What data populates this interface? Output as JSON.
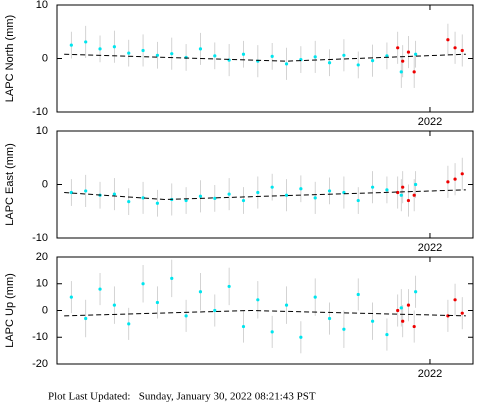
{
  "chart_data": [
    {
      "type": "scatter",
      "ylabel": "LAPC North (mm)",
      "xlim": [
        2016.8,
        2022.6
      ],
      "xticks": [
        2022
      ],
      "ylim": [
        -10,
        10
      ],
      "yticks": [
        -10,
        0,
        10
      ],
      "series": [
        {
          "color": "#00e5ee",
          "x": [
            2017.0,
            2017.2,
            2017.4,
            2017.6,
            2017.8,
            2018.0,
            2018.2,
            2018.4,
            2018.6,
            2018.8,
            2019.0,
            2019.2,
            2019.4,
            2019.6,
            2019.8,
            2020.0,
            2020.2,
            2020.4,
            2020.6,
            2020.8,
            2021.0,
            2021.2,
            2021.4,
            2021.6,
            2021.8
          ],
          "values": [
            2.5,
            3.1,
            1.8,
            2.2,
            1.0,
            1.5,
            0.6,
            0.9,
            0.2,
            1.8,
            0.5,
            -0.3,
            0.8,
            -0.5,
            0.4,
            -1.0,
            -0.2,
            0.3,
            -0.8,
            0.6,
            -1.2,
            -0.4,
            0.5,
            -2.5,
            0.8
          ],
          "errors": [
            2.5,
            3,
            2.5,
            3,
            2.5,
            3,
            2.5,
            3,
            2.5,
            3,
            2.5,
            3,
            2.5,
            3,
            2.5,
            3,
            2.5,
            3,
            2.5,
            3,
            2.5,
            3,
            2.5,
            3,
            2.5
          ]
        },
        {
          "color": "#ee0000",
          "x": [
            2021.55,
            2021.62,
            2021.7,
            2021.78,
            2022.25,
            2022.35,
            2022.45
          ],
          "values": [
            2.0,
            -0.5,
            1.2,
            -2.5,
            3.5,
            2.0,
            1.5
          ],
          "errors": [
            3,
            3,
            3,
            3,
            3,
            3,
            3
          ]
        }
      ],
      "trend": {
        "color": "#000000",
        "x": [
          2016.9,
          2020.0,
          2022.5
        ],
        "values": [
          0.8,
          -0.5,
          0.8
        ]
      }
    },
    {
      "type": "scatter",
      "ylabel": "LAPC East (mm)",
      "xlim": [
        2016.8,
        2022.6
      ],
      "xticks": [
        2022
      ],
      "ylim": [
        -10,
        10
      ],
      "yticks": [
        -10,
        0,
        10
      ],
      "series": [
        {
          "color": "#00e5ee",
          "x": [
            2017.0,
            2017.2,
            2017.4,
            2017.6,
            2017.8,
            2018.0,
            2018.2,
            2018.4,
            2018.6,
            2018.8,
            2019.0,
            2019.2,
            2019.4,
            2019.6,
            2019.8,
            2020.0,
            2020.2,
            2020.4,
            2020.6,
            2020.8,
            2021.0,
            2021.2,
            2021.4,
            2021.6,
            2021.8
          ],
          "values": [
            -1.5,
            -1.2,
            -2.0,
            -1.8,
            -3.2,
            -2.5,
            -3.5,
            -2.8,
            -3.0,
            -2.2,
            -2.6,
            -1.8,
            -3.0,
            -1.5,
            -0.5,
            -2.0,
            -0.8,
            -2.5,
            -1.2,
            -1.5,
            -3.0,
            -0.5,
            -1.0,
            -2.0,
            0.0
          ],
          "errors": [
            2.5,
            3,
            2.5,
            3,
            2.5,
            3,
            2.5,
            3,
            2.5,
            3,
            2.5,
            3,
            2.5,
            3,
            2.5,
            3,
            2.5,
            3,
            2.5,
            3,
            2.5,
            3,
            2.5,
            3,
            2.5
          ]
        },
        {
          "color": "#ee0000",
          "x": [
            2021.55,
            2021.62,
            2021.7,
            2021.78,
            2022.25,
            2022.35,
            2022.45
          ],
          "values": [
            -1.5,
            -0.5,
            -3.0,
            -2.0,
            0.5,
            1.0,
            2.0
          ],
          "errors": [
            3,
            3,
            3,
            3,
            3,
            3,
            3
          ]
        }
      ],
      "trend": {
        "color": "#000000",
        "x": [
          2016.9,
          2018.3,
          2022.5
        ],
        "values": [
          -1.5,
          -2.8,
          -1.0
        ]
      }
    },
    {
      "type": "scatter",
      "ylabel": "LAPC Up (mm)",
      "xlim": [
        2016.8,
        2022.6
      ],
      "xticks": [
        2022
      ],
      "ylim": [
        -20,
        20
      ],
      "yticks": [
        -20,
        -10,
        0,
        10,
        20
      ],
      "series": [
        {
          "color": "#00e5ee",
          "x": [
            2017.0,
            2017.2,
            2017.4,
            2017.6,
            2017.8,
            2018.0,
            2018.2,
            2018.4,
            2018.6,
            2018.8,
            2019.0,
            2019.2,
            2019.4,
            2019.6,
            2019.8,
            2020.0,
            2020.2,
            2020.4,
            2020.6,
            2020.8,
            2021.0,
            2021.2,
            2021.4,
            2021.6,
            2021.8
          ],
          "values": [
            5,
            -3,
            8,
            2,
            -5,
            10,
            3,
            12,
            -2,
            7,
            0,
            9,
            -6,
            4,
            -8,
            2,
            -10,
            5,
            -3,
            -7,
            6,
            -4,
            -9,
            1,
            7
          ],
          "errors": [
            6,
            7,
            6,
            7,
            6,
            7,
            6,
            7,
            6,
            7,
            6,
            7,
            6,
            7,
            6,
            7,
            6,
            7,
            6,
            7,
            6,
            7,
            6,
            7,
            6
          ]
        },
        {
          "color": "#ee0000",
          "x": [
            2021.55,
            2021.62,
            2021.7,
            2021.78,
            2022.25,
            2022.35,
            2022.45
          ],
          "values": [
            0,
            -4,
            2,
            -6,
            -2,
            4,
            -1
          ],
          "errors": [
            6,
            6,
            6,
            6,
            6,
            6,
            6
          ]
        }
      ],
      "trend": {
        "color": "#000000",
        "x": [
          2016.9,
          2019.5,
          2022.5
        ],
        "values": [
          -2,
          0,
          -2
        ]
      }
    }
  ],
  "footer": "Plot Last Updated:   Sunday, January 30, 2022 08:21:43 PST"
}
